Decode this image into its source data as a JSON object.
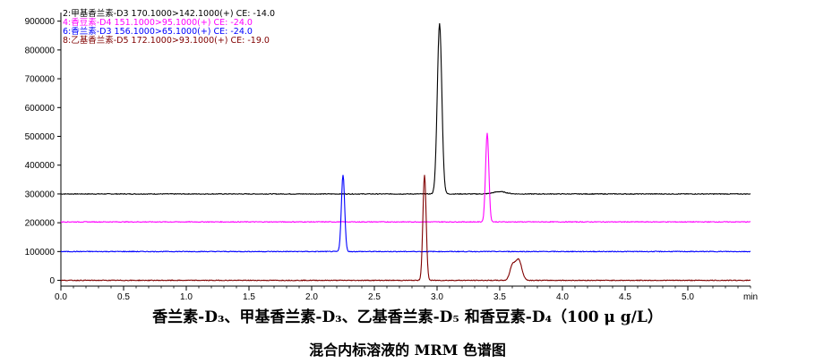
{
  "chart_data": {
    "type": "line",
    "xlabel": "",
    "x_unit_label": "min",
    "xlim": [
      0.0,
      5.5
    ],
    "ylim": [
      -20000,
      930000
    ],
    "x_ticks": [
      "0.0",
      "0.5",
      "1.0",
      "1.5",
      "2.0",
      "2.5",
      "3.0",
      "3.5",
      "4.0",
      "4.5",
      "5.0"
    ],
    "y_ticks": [
      "0",
      "100000",
      "200000",
      "300000",
      "400000",
      "500000",
      "600000",
      "700000",
      "800000",
      "900000"
    ],
    "legend_position": "top-left",
    "series": [
      {
        "name": "2:甲基香兰素-D3 170.1000>142.1000(+) CE: -14.0",
        "color": "#000000",
        "baseline": 300000,
        "peaks": [
          {
            "x": 3.02,
            "y": 892000,
            "width": 0.018
          },
          {
            "x": 3.5,
            "y": 308000,
            "width": 0.05
          }
        ]
      },
      {
        "name": "4:香豆素-D4 151.1000>95.1000(+) CE: -24.0",
        "color": "#ff00ff",
        "baseline": 203000,
        "peaks": [
          {
            "x": 3.4,
            "y": 512000,
            "width": 0.013
          }
        ]
      },
      {
        "name": "6:香兰素-D3 156.1000>65.1000(+) CE: -24.0",
        "color": "#0000ff",
        "baseline": 100000,
        "peaks": [
          {
            "x": 2.25,
            "y": 367000,
            "width": 0.013
          }
        ]
      },
      {
        "name": "8:乙基香兰素-D5 172.1000>93.1000(+) CE: -19.0",
        "color": "#800000",
        "baseline": 0,
        "peaks": [
          {
            "x": 2.9,
            "y": 365000,
            "width": 0.013
          },
          {
            "x": 3.6,
            "y": 48000,
            "width": 0.02
          },
          {
            "x": 3.65,
            "y": 72000,
            "width": 0.025
          }
        ]
      }
    ]
  },
  "caption": {
    "line1": "香兰素-D₃、甲基香兰素-D₃、乙基香兰素-D₅ 和香豆素-D₄（100 μ g/L）",
    "line2": "混合内标溶液的 MRM 色谱图"
  }
}
